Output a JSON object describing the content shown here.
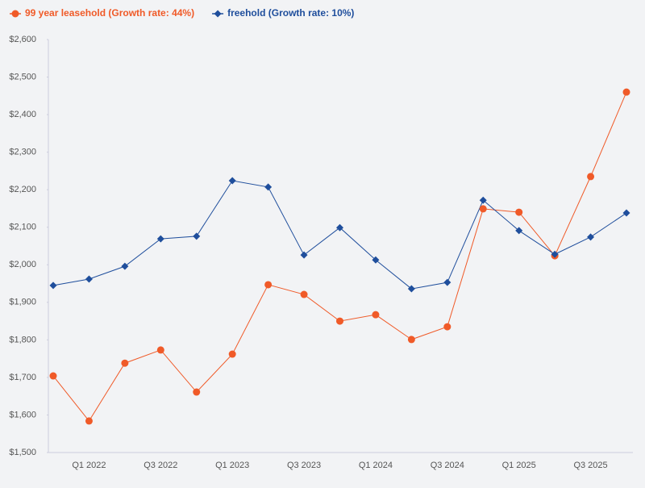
{
  "chart_data": {
    "type": "line",
    "categories": [
      null,
      "Q1 2022",
      null,
      "Q3 2022",
      null,
      "Q1 2023",
      null,
      "Q3 2023",
      null,
      "Q1 2024",
      null,
      "Q3 2024",
      null,
      "Q1 2025",
      null,
      "Q3 2025",
      null
    ],
    "series": [
      {
        "name": "99 year leasehold (Growth rate: 44%)",
        "color": "#f05a28",
        "marker": "circle",
        "values": [
          1704,
          1584,
          1738,
          1773,
          1661,
          1762,
          1947,
          1921,
          1850,
          1867,
          1801,
          1835,
          2149,
          2140,
          2024,
          2235,
          2460
        ]
      },
      {
        "name": "freehold (Growth rate: 10%)",
        "color": "#1f4e9c",
        "marker": "diamond",
        "values": [
          1945,
          1962,
          1996,
          2069,
          2076,
          2224,
          2207,
          2026,
          2099,
          2013,
          1936,
          1953,
          2172,
          2091,
          2028,
          2074,
          2138
        ]
      }
    ],
    "ylim": [
      1500,
      2600
    ],
    "yticks": [
      {
        "value": 1500,
        "label": "$1,500"
      },
      {
        "value": 1600,
        "label": "$1,600"
      },
      {
        "value": 1700,
        "label": "$1,700"
      },
      {
        "value": 1800,
        "label": "$1,800"
      },
      {
        "value": 1900,
        "label": "$1,900"
      },
      {
        "value": 2000,
        "label": "$2,000"
      },
      {
        "value": 2100,
        "label": "$2,100"
      },
      {
        "value": 2200,
        "label": "$2,200"
      },
      {
        "value": 2300,
        "label": "$2,300"
      },
      {
        "value": 2400,
        "label": "$2,400"
      },
      {
        "value": 2500,
        "label": "$2,500"
      },
      {
        "value": 2600,
        "label": "$2,600"
      }
    ],
    "grid": false
  }
}
